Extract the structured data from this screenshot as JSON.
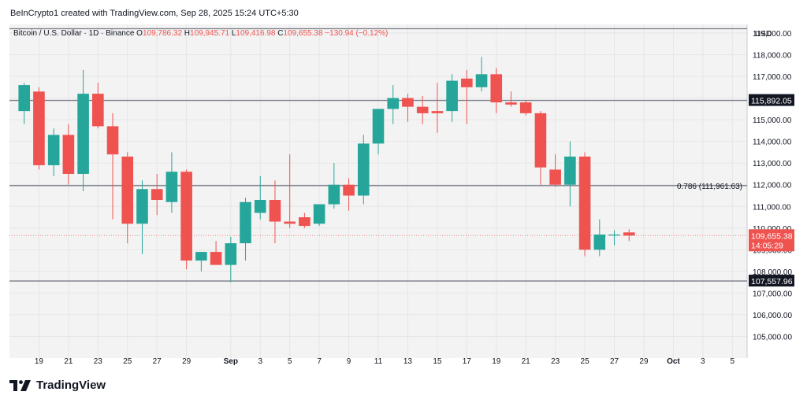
{
  "header": {
    "text": "BeInCrypto1 created with TradingView.com, Sep 28, 2025 15:24 UTC+5:30"
  },
  "brand": {
    "name": "TradingView"
  },
  "colors": {
    "up": "#26a69a",
    "down": "#ef5350",
    "line": "#787b86",
    "bg_plot": "#f3f3f3",
    "label_dark": "#131722"
  },
  "chart_data": {
    "type": "candlestick",
    "symbol_legend": {
      "name": "Bitcoin / U.S. Dollar · 1D · Binance",
      "o_label": "O",
      "o": "109,786.32",
      "h_label": "H",
      "h": "109,945.71",
      "l_label": "L",
      "l": "109,416.98",
      "c_label": "C",
      "c": "109,655.38",
      "change": "−130.94 (−0.12%)"
    },
    "currency": "USD",
    "ylim": [
      104000,
      119400
    ],
    "y_ticks": [
      {
        "v": 119000,
        "label": "119,000.00"
      },
      {
        "v": 118000,
        "label": "118,000.00"
      },
      {
        "v": 117000,
        "label": "117,000.00"
      },
      {
        "v": 116000,
        "label": "116,000.00"
      },
      {
        "v": 115000,
        "label": "115,000.00"
      },
      {
        "v": 114000,
        "label": "114,000.00"
      },
      {
        "v": 113000,
        "label": "113,000.00"
      },
      {
        "v": 112000,
        "label": "112,000.00"
      },
      {
        "v": 111000,
        "label": "111,000.00"
      },
      {
        "v": 110000,
        "label": "110,000.00"
      },
      {
        "v": 109000,
        "label": "109,000.00"
      },
      {
        "v": 108000,
        "label": "108,000.00"
      },
      {
        "v": 107000,
        "label": "107,000.00"
      },
      {
        "v": 106000,
        "label": "106,000.00"
      },
      {
        "v": 105000,
        "label": "105,000.00"
      }
    ],
    "x_ticks": [
      {
        "d": "2025-08-19",
        "label": "19"
      },
      {
        "d": "2025-08-21",
        "label": "21"
      },
      {
        "d": "2025-08-23",
        "label": "23"
      },
      {
        "d": "2025-08-25",
        "label": "25"
      },
      {
        "d": "2025-08-27",
        "label": "27"
      },
      {
        "d": "2025-08-29",
        "label": "29"
      },
      {
        "d": "2025-09-01",
        "label": "Sep",
        "bold": true
      },
      {
        "d": "2025-09-03",
        "label": "3"
      },
      {
        "d": "2025-09-05",
        "label": "5"
      },
      {
        "d": "2025-09-07",
        "label": "7"
      },
      {
        "d": "2025-09-09",
        "label": "9"
      },
      {
        "d": "2025-09-11",
        "label": "11"
      },
      {
        "d": "2025-09-13",
        "label": "13"
      },
      {
        "d": "2025-09-15",
        "label": "15"
      },
      {
        "d": "2025-09-17",
        "label": "17"
      },
      {
        "d": "2025-09-19",
        "label": "19"
      },
      {
        "d": "2025-09-21",
        "label": "21"
      },
      {
        "d": "2025-09-23",
        "label": "23"
      },
      {
        "d": "2025-09-25",
        "label": "25"
      },
      {
        "d": "2025-09-27",
        "label": "27"
      },
      {
        "d": "2025-09-29",
        "label": "29"
      },
      {
        "d": "2025-10-01",
        "label": "Oct",
        "bold": true
      },
      {
        "d": "2025-10-03",
        "label": "3"
      },
      {
        "d": "2025-10-05",
        "label": "5"
      }
    ],
    "candles": [
      {
        "d": "2025-08-18",
        "o": 115400,
        "h": 116700,
        "l": 114800,
        "c": 116600
      },
      {
        "d": "2025-08-19",
        "o": 116300,
        "h": 116500,
        "l": 112700,
        "c": 112900
      },
      {
        "d": "2025-08-20",
        "o": 112900,
        "h": 114600,
        "l": 112400,
        "c": 114300
      },
      {
        "d": "2025-08-21",
        "o": 114300,
        "h": 114800,
        "l": 112000,
        "c": 112500
      },
      {
        "d": "2025-08-22",
        "o": 112500,
        "h": 117300,
        "l": 111700,
        "c": 116200
      },
      {
        "d": "2025-08-23",
        "o": 116200,
        "h": 116700,
        "l": 114600,
        "c": 114700
      },
      {
        "d": "2025-08-24",
        "o": 114700,
        "h": 115300,
        "l": 110400,
        "c": 113400
      },
      {
        "d": "2025-08-25",
        "o": 113300,
        "h": 113500,
        "l": 109300,
        "c": 110200
      },
      {
        "d": "2025-08-26",
        "o": 110200,
        "h": 112200,
        "l": 108800,
        "c": 111800
      },
      {
        "d": "2025-08-27",
        "o": 111800,
        "h": 112500,
        "l": 110600,
        "c": 111300
      },
      {
        "d": "2025-08-28",
        "o": 111200,
        "h": 113500,
        "l": 110700,
        "c": 112600
      },
      {
        "d": "2025-08-29",
        "o": 112600,
        "h": 112700,
        "l": 108100,
        "c": 108500
      },
      {
        "d": "2025-08-30",
        "o": 108500,
        "h": 108900,
        "l": 108000,
        "c": 108900
      },
      {
        "d": "2025-08-31",
        "o": 108900,
        "h": 109400,
        "l": 108300,
        "c": 108300
      },
      {
        "d": "2025-09-01",
        "o": 108300,
        "h": 109600,
        "l": 107500,
        "c": 109300
      },
      {
        "d": "2025-09-02",
        "o": 109300,
        "h": 111400,
        "l": 108500,
        "c": 111200
      },
      {
        "d": "2025-09-03",
        "o": 110700,
        "h": 112400,
        "l": 110400,
        "c": 111300
      },
      {
        "d": "2025-09-04",
        "o": 111300,
        "h": 112200,
        "l": 109300,
        "c": 110300
      },
      {
        "d": "2025-09-05",
        "o": 110300,
        "h": 113400,
        "l": 110000,
        "c": 110200
      },
      {
        "d": "2025-09-06",
        "o": 110500,
        "h": 110700,
        "l": 110000,
        "c": 110100
      },
      {
        "d": "2025-09-07",
        "o": 110200,
        "h": 111100,
        "l": 110100,
        "c": 111100
      },
      {
        "d": "2025-09-08",
        "o": 111100,
        "h": 113000,
        "l": 110900,
        "c": 112000
      },
      {
        "d": "2025-09-09",
        "o": 112000,
        "h": 112300,
        "l": 110800,
        "c": 111500
      },
      {
        "d": "2025-09-10",
        "o": 111500,
        "h": 114300,
        "l": 111100,
        "c": 113900
      },
      {
        "d": "2025-09-11",
        "o": 113900,
        "h": 115500,
        "l": 113400,
        "c": 115500
      },
      {
        "d": "2025-09-12",
        "o": 115500,
        "h": 116600,
        "l": 114800,
        "c": 116000
      },
      {
        "d": "2025-09-13",
        "o": 116000,
        "h": 116200,
        "l": 114900,
        "c": 115600
      },
      {
        "d": "2025-09-14",
        "o": 115600,
        "h": 116100,
        "l": 114800,
        "c": 115300
      },
      {
        "d": "2025-09-15",
        "o": 115400,
        "h": 116700,
        "l": 114400,
        "c": 115300
      },
      {
        "d": "2025-09-16",
        "o": 115400,
        "h": 117100,
        "l": 114900,
        "c": 116800
      },
      {
        "d": "2025-09-17",
        "o": 116900,
        "h": 117300,
        "l": 114800,
        "c": 116500
      },
      {
        "d": "2025-09-18",
        "o": 116500,
        "h": 117900,
        "l": 116300,
        "c": 117100
      },
      {
        "d": "2025-09-19",
        "o": 117100,
        "h": 117400,
        "l": 115300,
        "c": 115800
      },
      {
        "d": "2025-09-20",
        "o": 115800,
        "h": 116300,
        "l": 115600,
        "c": 115700
      },
      {
        "d": "2025-09-21",
        "o": 115800,
        "h": 115900,
        "l": 115200,
        "c": 115300
      },
      {
        "d": "2025-09-22",
        "o": 115300,
        "h": 115400,
        "l": 112000,
        "c": 112800
      },
      {
        "d": "2025-09-23",
        "o": 112700,
        "h": 113400,
        "l": 111900,
        "c": 112000
      },
      {
        "d": "2025-09-24",
        "o": 112000,
        "h": 114000,
        "l": 111000,
        "c": 113300
      },
      {
        "d": "2025-09-25",
        "o": 113300,
        "h": 113500,
        "l": 108700,
        "c": 109000
      },
      {
        "d": "2025-09-26",
        "o": 109000,
        "h": 110400,
        "l": 108700,
        "c": 109700
      },
      {
        "d": "2025-09-27",
        "o": 109700,
        "h": 109900,
        "l": 109200,
        "c": 109700
      },
      {
        "d": "2025-09-28",
        "o": 109800,
        "h": 109950,
        "l": 109400,
        "c": 109655
      }
    ],
    "horizontal_lines": [
      {
        "v": 119200,
        "label": ""
      },
      {
        "v": 115892.05,
        "label": "115,892.05"
      },
      {
        "v": 111961.63,
        "label": "",
        "annotation": "0.786 (111,961.63)"
      },
      {
        "v": 107557.96,
        "label": "107,557.96"
      }
    ],
    "last_price": {
      "v": 109655.38,
      "label": "109,655.38",
      "countdown": "14:05:29"
    },
    "grid": true,
    "x_start": "2025-08-17",
    "x_end": "2025-10-06"
  }
}
